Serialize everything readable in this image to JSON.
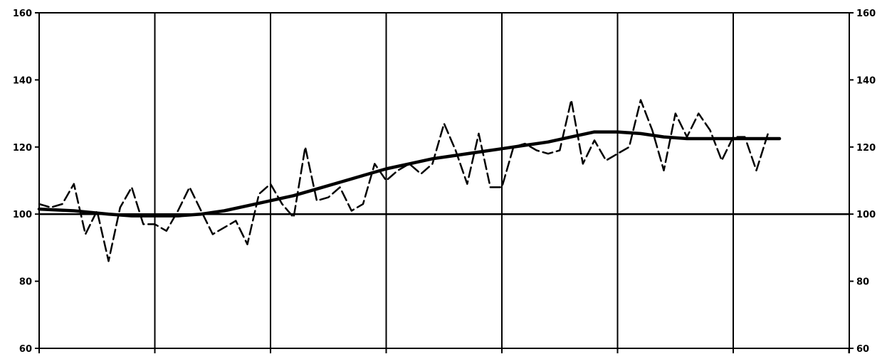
{
  "chart_data": {
    "type": "line",
    "title": "",
    "xlabel": "",
    "ylabel": "",
    "ylim": [
      60,
      160
    ],
    "y_ticks": [
      160,
      140,
      120,
      100,
      80,
      60
    ],
    "y_tick_labels_left": [
      "160",
      "140",
      "120",
      "100",
      "80",
      "60"
    ],
    "y_tick_labels_right": [
      "160",
      "140",
      "120",
      "100",
      "80",
      "60"
    ],
    "xlim": [
      0,
      71
    ],
    "x_gridlines": [
      0,
      10,
      20,
      30,
      40,
      50,
      60,
      70
    ],
    "grid": true,
    "reference_line": 100,
    "series": [
      {
        "style": "dashed",
        "x": [
          0,
          1,
          2,
          3,
          4,
          5,
          6,
          7,
          8,
          9,
          10,
          11,
          12,
          13,
          14,
          15,
          16,
          17,
          18,
          19,
          20,
          21,
          22,
          23,
          24,
          25,
          26,
          27,
          28,
          29,
          30,
          31,
          32,
          33,
          34,
          35,
          36,
          37,
          38,
          39,
          40,
          41,
          42,
          43,
          44,
          45,
          46,
          47,
          48,
          49,
          50,
          51,
          52,
          53,
          54,
          55,
          56,
          57,
          58,
          59,
          60,
          61,
          62,
          63
        ],
        "values": [
          103,
          102,
          103,
          109,
          94,
          101,
          86,
          102,
          108,
          97,
          97,
          95,
          101,
          108,
          101,
          94,
          96,
          98,
          91,
          106,
          109,
          103,
          99,
          120,
          104,
          105,
          108,
          101,
          103,
          115,
          110,
          113,
          115,
          112,
          115,
          127,
          119,
          109,
          124,
          108,
          108,
          120,
          121,
          119,
          118,
          119,
          134,
          115,
          122,
          116,
          118,
          120,
          134,
          125,
          113,
          130,
          123,
          130,
          125,
          116,
          123,
          123,
          113,
          124
        ]
      },
      {
        "style": "solid",
        "x": [
          0,
          3,
          6,
          8,
          10,
          12,
          14,
          16,
          18,
          20,
          22,
          24,
          26,
          28,
          30,
          32,
          34,
          36,
          38,
          40,
          42,
          44,
          46,
          48,
          50,
          52,
          54,
          56,
          58,
          60,
          62,
          64
        ],
        "values": [
          101.5,
          101,
          100,
          99.5,
          99.5,
          99.5,
          100,
          101,
          102.5,
          104,
          105.5,
          107.5,
          109.5,
          111.5,
          113.5,
          115,
          116.5,
          117.5,
          118.5,
          119.5,
          120.5,
          121.5,
          123,
          124.5,
          124.5,
          124,
          123,
          122.5,
          122.5,
          122.5,
          122.5,
          122.5
        ]
      }
    ]
  }
}
